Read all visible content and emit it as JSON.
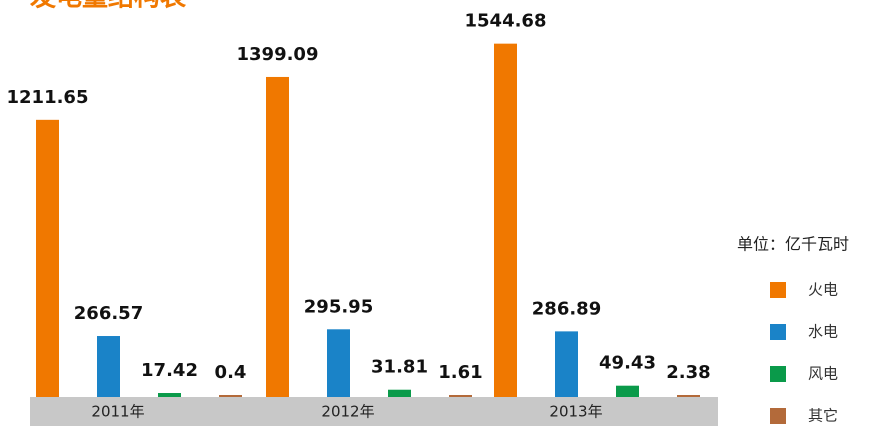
{
  "chart_data": {
    "type": "bar",
    "title": "发电量结构表",
    "unit": "单位：亿千瓦时",
    "categories": [
      "2011年",
      "2012年",
      "2013年"
    ],
    "series": [
      {
        "name": "火电",
        "color": "#f07800",
        "values": [
          1211.65,
          1399.09,
          1544.68
        ]
      },
      {
        "name": "水电",
        "color": "#1a83c8",
        "values": [
          266.57,
          295.95,
          286.89
        ]
      },
      {
        "name": "风电",
        "color": "#0a9a4a",
        "values": [
          17.42,
          31.81,
          49.43
        ]
      },
      {
        "name": "其它",
        "color": "#b36a3a",
        "values": [
          0.4,
          1.61,
          2.38
        ]
      }
    ],
    "ylim": [
      0,
      1600
    ]
  }
}
